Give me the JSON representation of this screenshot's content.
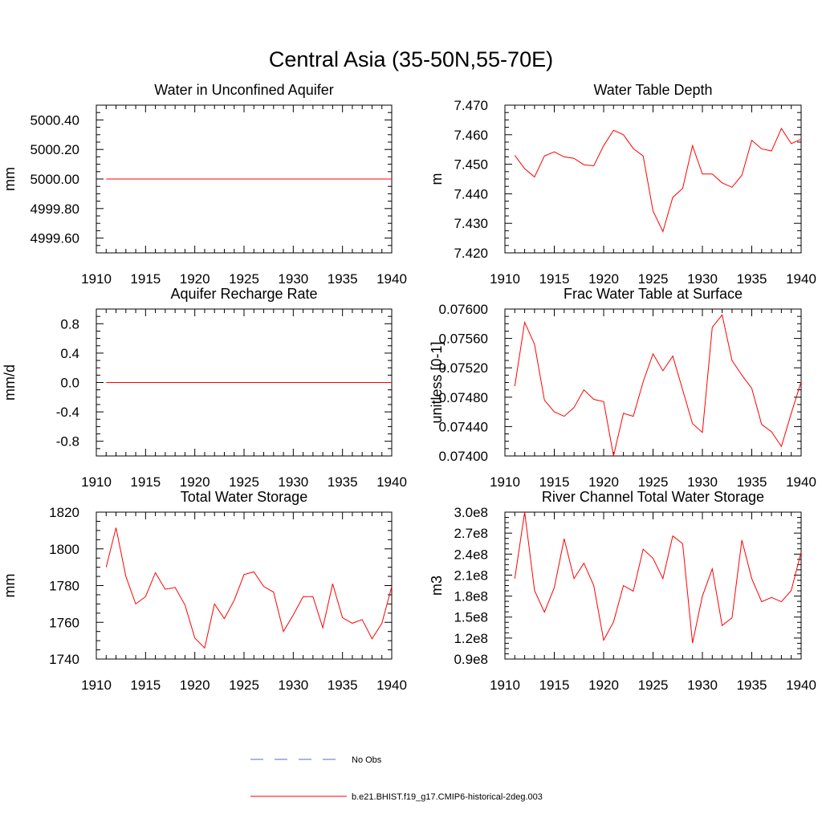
{
  "figure": {
    "title": "Central Asia (35-50N,55-70E)"
  },
  "legend": [
    {
      "label": "No Obs",
      "style": "dashed",
      "color": "#5a6ec8"
    },
    {
      "label": "b.e21.BHIST.f19_g17.CMIP6-historical-2deg.003",
      "style": "solid",
      "color": "#ff0000"
    }
  ],
  "chart_data": [
    {
      "type": "line",
      "title": "Water in Unconfined Aquifer",
      "ylabel": "mm",
      "xlim": [
        1910,
        1940
      ],
      "ylim": [
        4999.5,
        5000.5
      ],
      "xticks": [
        1910,
        1915,
        1920,
        1925,
        1930,
        1935,
        1940
      ],
      "xtick_labels": [
        "1910",
        "1915",
        "1920",
        "1925",
        "1930",
        "1935",
        "1940"
      ],
      "yticks": [
        4999.6,
        4999.8,
        5000.0,
        5000.2,
        5000.4
      ],
      "ytick_labels": [
        "4999.60",
        "4999.80",
        "5000.00",
        "5000.20",
        "5000.40"
      ],
      "series": [
        {
          "color": "#ff0000",
          "x": [
            1911,
            1940
          ],
          "y": [
            5000.0,
            5000.0
          ]
        }
      ]
    },
    {
      "type": "line",
      "title": "Water Table Depth",
      "ylabel": "m",
      "xlim": [
        1910,
        1940
      ],
      "ylim": [
        7.42,
        7.47
      ],
      "xticks": [
        1910,
        1915,
        1920,
        1925,
        1930,
        1935,
        1940
      ],
      "xtick_labels": [
        "1910",
        "1915",
        "1920",
        "1925",
        "1930",
        "1935",
        "1940"
      ],
      "yticks": [
        7.42,
        7.43,
        7.44,
        7.45,
        7.46,
        7.47
      ],
      "ytick_labels": [
        "7.420",
        "7.430",
        "7.440",
        "7.450",
        "7.460",
        "7.470"
      ],
      "series": [
        {
          "color": "#ff0000",
          "x": [
            1911,
            1912,
            1913,
            1914,
            1915,
            1916,
            1917,
            1918,
            1919,
            1920,
            1921,
            1922,
            1923,
            1924,
            1925,
            1926,
            1927,
            1928,
            1929,
            1930,
            1931,
            1932,
            1933,
            1934,
            1935,
            1936,
            1937,
            1938,
            1939,
            1940
          ],
          "y": [
            7.453,
            7.4485,
            7.4457,
            7.4528,
            7.4542,
            7.4525,
            7.452,
            7.4498,
            7.4495,
            7.4563,
            7.4615,
            7.46,
            7.4553,
            7.4528,
            7.4342,
            7.4272,
            7.4388,
            7.4418,
            7.4563,
            7.4467,
            7.4467,
            7.4437,
            7.4422,
            7.4463,
            7.4581,
            7.4552,
            7.4545,
            7.4621,
            7.457,
            7.4585
          ]
        }
      ]
    },
    {
      "type": "line",
      "title": "Aquifer Recharge Rate",
      "ylabel": "mm/d",
      "xlim": [
        1910,
        1940
      ],
      "ylim": [
        -1.0,
        1.0
      ],
      "xticks": [
        1910,
        1915,
        1920,
        1925,
        1930,
        1935,
        1940
      ],
      "xtick_labels": [
        "1910",
        "1915",
        "1920",
        "1925",
        "1930",
        "1935",
        "1940"
      ],
      "yticks": [
        -0.8,
        -0.4,
        0.0,
        0.4,
        0.8
      ],
      "ytick_labels": [
        "-0.8",
        "-0.4",
        "0.0",
        "0.4",
        "0.8"
      ],
      "series": [
        {
          "color": "#ff0000",
          "x": [
            1911,
            1940
          ],
          "y": [
            0.0,
            0.0
          ]
        }
      ]
    },
    {
      "type": "line",
      "title": "Frac Water Table at Surface",
      "ylabel": "unitless [0-1]",
      "xlim": [
        1910,
        1940
      ],
      "ylim": [
        0.074,
        0.076
      ],
      "xticks": [
        1910,
        1915,
        1920,
        1925,
        1930,
        1935,
        1940
      ],
      "xtick_labels": [
        "1910",
        "1915",
        "1920",
        "1925",
        "1930",
        "1935",
        "1940"
      ],
      "yticks": [
        0.074,
        0.0744,
        0.0748,
        0.0752,
        0.0756,
        0.076
      ],
      "ytick_labels": [
        "0.07400",
        "0.07440",
        "0.07480",
        "0.07520",
        "0.07560",
        "0.07600"
      ],
      "series": [
        {
          "color": "#ff0000",
          "x": [
            1911,
            1912,
            1913,
            1914,
            1915,
            1916,
            1917,
            1918,
            1919,
            1920,
            1921,
            1922,
            1923,
            1924,
            1925,
            1926,
            1927,
            1928,
            1929,
            1930,
            1931,
            1932,
            1933,
            1934,
            1935,
            1936,
            1937,
            1938,
            1939,
            1940
          ],
          "y": [
            0.07495,
            0.07582,
            0.07552,
            0.07476,
            0.0746,
            0.07454,
            0.07466,
            0.0749,
            0.07477,
            0.07474,
            0.074,
            0.07458,
            0.07454,
            0.07501,
            0.07539,
            0.07516,
            0.07536,
            0.0749,
            0.07444,
            0.07432,
            0.07575,
            0.07592,
            0.0753,
            0.0751,
            0.07492,
            0.07443,
            0.07433,
            0.07413,
            0.07458,
            0.07501
          ]
        }
      ]
    },
    {
      "type": "line",
      "title": "Total Water Storage",
      "ylabel": "mm",
      "xlim": [
        1910,
        1940
      ],
      "ylim": [
        1740,
        1820
      ],
      "xticks": [
        1910,
        1915,
        1920,
        1925,
        1930,
        1935,
        1940
      ],
      "xtick_labels": [
        "1910",
        "1915",
        "1920",
        "1925",
        "1930",
        "1935",
        "1940"
      ],
      "yticks": [
        1740,
        1760,
        1780,
        1800,
        1820
      ],
      "ytick_labels": [
        "1740",
        "1760",
        "1780",
        "1800",
        "1820"
      ],
      "series": [
        {
          "color": "#ff0000",
          "x": [
            1911,
            1912,
            1913,
            1914,
            1915,
            1916,
            1917,
            1918,
            1919,
            1920,
            1921,
            1922,
            1923,
            1924,
            1925,
            1926,
            1927,
            1928,
            1929,
            1930,
            1931,
            1932,
            1933,
            1934,
            1935,
            1936,
            1937,
            1938,
            1939,
            1940
          ],
          "y": [
            1790,
            1811.5,
            1785,
            1770,
            1774,
            1787,
            1778,
            1779,
            1769.5,
            1751.5,
            1746,
            1770,
            1762,
            1772,
            1786,
            1787.5,
            1779.5,
            1776.5,
            1755,
            1764,
            1774,
            1774,
            1757,
            1781,
            1762.5,
            1759.5,
            1761.5,
            1751,
            1759.5,
            1779.5
          ]
        }
      ]
    },
    {
      "type": "line",
      "title": "River Channel Total Water Storage",
      "ylabel": "m3",
      "xlim": [
        1910,
        1940
      ],
      "ylim": [
        90000000.0,
        300000000.0
      ],
      "xticks": [
        1910,
        1915,
        1920,
        1925,
        1930,
        1935,
        1940
      ],
      "xtick_labels": [
        "1910",
        "1915",
        "1920",
        "1925",
        "1930",
        "1935",
        "1940"
      ],
      "yticks": [
        90000000.0,
        120000000.0,
        150000000.0,
        180000000.0,
        210000000.0,
        240000000.0,
        270000000.0,
        300000000.0
      ],
      "ytick_labels": [
        "0.9e8",
        "1.2e8",
        "1.5e8",
        "1.8e8",
        "2.1e8",
        "2.4e8",
        "2.7e8",
        "3.0e8"
      ],
      "series": [
        {
          "color": "#ff0000",
          "x": [
            1911,
            1912,
            1913,
            1914,
            1915,
            1916,
            1917,
            1918,
            1919,
            1920,
            1921,
            1922,
            1923,
            1924,
            1925,
            1926,
            1927,
            1928,
            1929,
            1930,
            1931,
            1932,
            1933,
            1934,
            1935,
            1936,
            1937,
            1938,
            1939,
            1940
          ],
          "y": [
            205000000.0,
            300000000.0,
            188000000.0,
            157000000.0,
            192000000.0,
            262000000.0,
            205000000.0,
            227000000.0,
            195000000.0,
            117000000.0,
            143000000.0,
            195000000.0,
            187000000.0,
            247000000.0,
            234000000.0,
            205000000.0,
            266000000.0,
            255000000.0,
            113000000.0,
            180000000.0,
            219000000.0,
            138000000.0,
            149000000.0,
            260000000.0,
            205000000.0,
            172000000.0,
            178000000.0,
            172000000.0,
            188000000.0,
            243000000.0
          ]
        }
      ]
    }
  ]
}
